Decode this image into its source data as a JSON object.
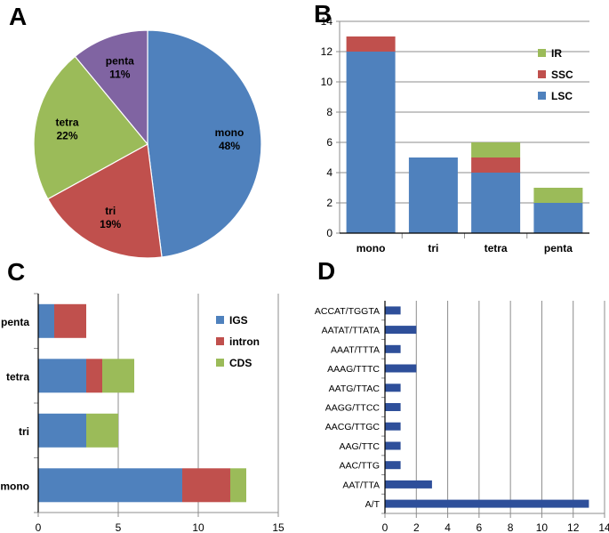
{
  "colors": {
    "blue": "#4f81bd",
    "red": "#c0504d",
    "green": "#9bbb59",
    "purple": "#8064a2",
    "navy": "#2e4f9a",
    "grid": "#8c8c8c",
    "axis": "#8c8c8c"
  },
  "chart_data": [
    {
      "panel": "A",
      "type": "pie",
      "labels": [
        "mono",
        "tri",
        "tetra",
        "penta"
      ],
      "values": [
        48,
        19,
        22,
        11
      ],
      "value_labels": [
        "48%",
        "19%",
        "22%",
        "11%"
      ],
      "colors": [
        "#4f81bd",
        "#c0504d",
        "#9bbb59",
        "#8064a2"
      ]
    },
    {
      "panel": "B",
      "type": "bar",
      "stacked": true,
      "categories": [
        "mono",
        "tri",
        "tetra",
        "penta"
      ],
      "series": [
        {
          "name": "LSC",
          "values": [
            12,
            5,
            4,
            2
          ],
          "color": "#4f81bd"
        },
        {
          "name": "SSC",
          "values": [
            1,
            0,
            1,
            0
          ],
          "color": "#c0504d"
        },
        {
          "name": "IR",
          "values": [
            0,
            0,
            1,
            1
          ],
          "color": "#9bbb59"
        }
      ],
      "legend_order": [
        "IR",
        "SSC",
        "LSC"
      ],
      "ylim": [
        0,
        14
      ],
      "yticks": [
        0,
        2,
        4,
        6,
        8,
        10,
        12,
        14
      ],
      "legend": "right"
    },
    {
      "panel": "C",
      "type": "bar",
      "orientation": "horizontal",
      "stacked": true,
      "categories": [
        "mono",
        "tri",
        "tetra",
        "penta"
      ],
      "series": [
        {
          "name": "IGS",
          "values": [
            9,
            3,
            3,
            1
          ],
          "color": "#4f81bd"
        },
        {
          "name": "intron",
          "values": [
            3,
            0,
            1,
            2
          ],
          "color": "#c0504d"
        },
        {
          "name": "CDS",
          "values": [
            1,
            2,
            2,
            0
          ],
          "color": "#9bbb59"
        }
      ],
      "xlim": [
        0,
        15
      ],
      "xticks": [
        0,
        5,
        10,
        15
      ],
      "legend": "top-right"
    },
    {
      "panel": "D",
      "type": "bar",
      "orientation": "horizontal",
      "categories": [
        "A/T",
        "AAT/TTA",
        "AAC/TTG",
        "AAG/TTC",
        "AACG/TTGC",
        "AAGG/TTCC",
        "AATG/TTAC",
        "AAAG/TTTC",
        "AAAT/TTTA",
        "AATAT/TTATA",
        "ACCAT/TGGTA"
      ],
      "values": [
        13,
        3,
        1,
        1,
        1,
        1,
        1,
        2,
        1,
        2,
        1
      ],
      "color": "#2e4f9a",
      "xlim": [
        0,
        14
      ],
      "xticks": [
        0,
        2,
        4,
        6,
        8,
        10,
        12,
        14
      ]
    }
  ]
}
